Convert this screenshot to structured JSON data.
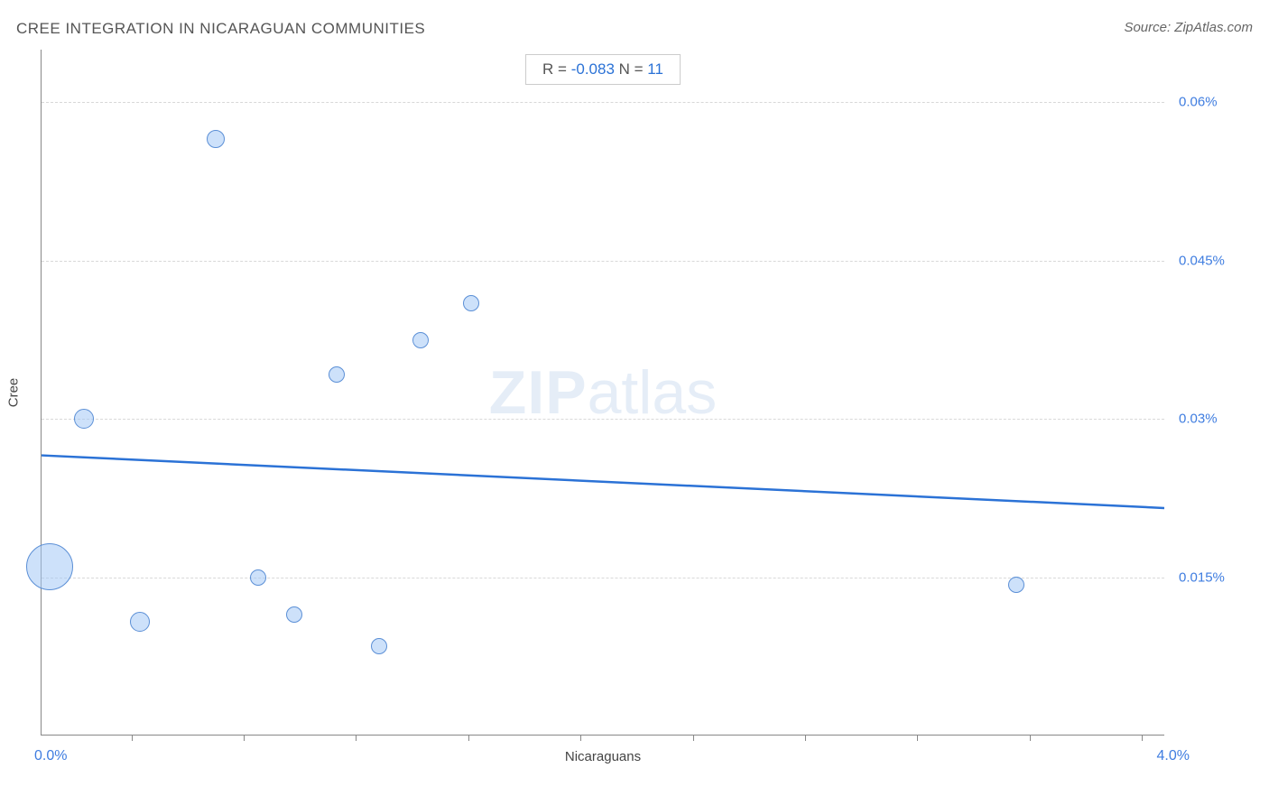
{
  "chart": {
    "type": "scatter",
    "title": "CREE INTEGRATION IN NICARAGUAN COMMUNITIES",
    "source": "Source: ZipAtlas.com",
    "watermark_zip": "ZIP",
    "watermark_atlas": "atlas",
    "x_axis": {
      "title": "Nicaraguans",
      "min_label": "0.0%",
      "max_label": "4.0%",
      "min": 0.0,
      "max": 4.0,
      "ticks_pct": [
        8,
        18,
        28,
        38,
        48,
        58,
        68,
        78,
        88,
        98
      ]
    },
    "y_axis": {
      "title": "Cree",
      "min": 0.0,
      "max": 0.065,
      "grid_values": [
        0.015,
        0.03,
        0.045,
        0.06
      ],
      "grid_labels": [
        "0.015%",
        "0.03%",
        "0.045%",
        "0.06%"
      ]
    },
    "stats": {
      "r_label": "R = ",
      "r_value": "-0.083",
      "n_label": "   N = ",
      "n_value": "11"
    },
    "trend": {
      "y_start": 0.0265,
      "y_end": 0.0215,
      "color": "#2b72d6",
      "width": 2.5
    },
    "bubbles": [
      {
        "x": 0.03,
        "y": 0.016,
        "size": 52
      },
      {
        "x": 0.15,
        "y": 0.03,
        "size": 22
      },
      {
        "x": 0.35,
        "y": 0.0108,
        "size": 22
      },
      {
        "x": 0.62,
        "y": 0.0565,
        "size": 20
      },
      {
        "x": 0.77,
        "y": 0.015,
        "size": 18
      },
      {
        "x": 0.9,
        "y": 0.0115,
        "size": 18
      },
      {
        "x": 1.05,
        "y": 0.0342,
        "size": 18
      },
      {
        "x": 1.2,
        "y": 0.0085,
        "size": 18
      },
      {
        "x": 1.35,
        "y": 0.0375,
        "size": 18
      },
      {
        "x": 1.53,
        "y": 0.041,
        "size": 18
      },
      {
        "x": 3.47,
        "y": 0.0143,
        "size": 18
      }
    ],
    "colors": {
      "title_text": "#555555",
      "axis_border": "#888888",
      "grid_line": "#d8d8d8",
      "tick_label": "#3f7de0",
      "axis_title": "#444444",
      "bubble_fill": "rgba(164,200,245,0.55)",
      "bubble_stroke": "#5b8fd6",
      "trend_line": "#2b72d6",
      "watermark": "#e5edf7",
      "background": "#ffffff",
      "stat_box_border": "#cccccc"
    }
  }
}
